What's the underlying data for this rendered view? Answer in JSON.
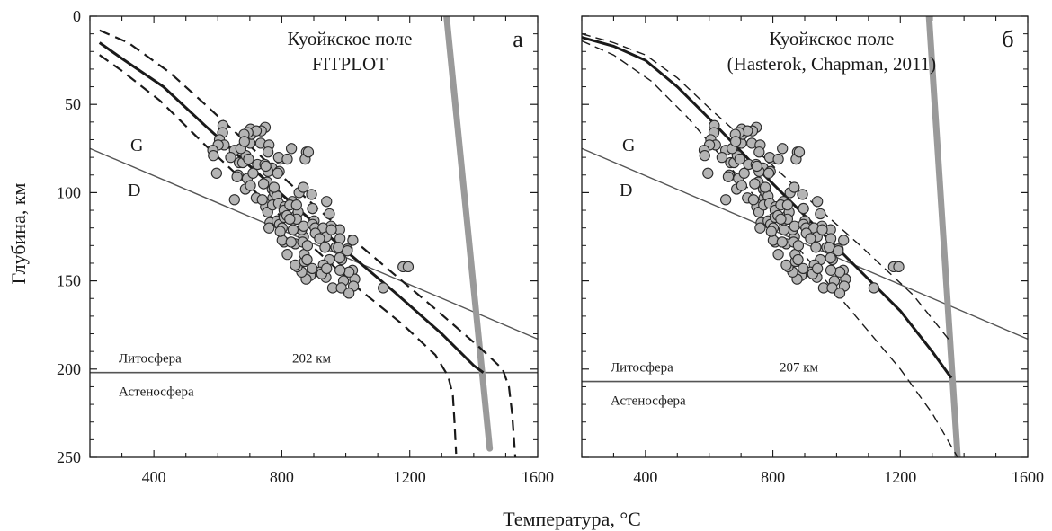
{
  "chart_data": {
    "type": "scatter",
    "xlabel": "Температура, °C",
    "ylabel": "Глубина, км",
    "xlim": [
      200,
      1600
    ],
    "ylim": [
      0,
      250
    ],
    "y_inverted": true,
    "xticks": [
      400,
      800,
      1200,
      1600
    ],
    "yticks": [
      0,
      50,
      100,
      150,
      200,
      250
    ],
    "colors": {
      "points": "#b4b4b4",
      "adiabat": "#9a9a9a",
      "geotherm": "#1a1a1a",
      "lines": "#555555"
    },
    "panels": [
      {
        "letter": "а",
        "title_line1": "Куойкское поле",
        "title_line2": "FITPLOT",
        "label_G": "G",
        "label_D": "D",
        "label_lithosphere": "Литосфера",
        "label_asthenosphere": "Астеносфера",
        "lab_depth_label": "202 км",
        "lab_depth": 202,
        "graphite_diamond_line": {
          "x": [
            200,
            1600
          ],
          "y": [
            75,
            183
          ]
        },
        "adiabat": {
          "x": [
            1315,
            1450
          ],
          "y": [
            0,
            245
          ]
        },
        "geotherm": {
          "x": [
            230,
            300,
            430,
            560,
            700,
            850,
            1000,
            1150,
            1300,
            1400,
            1430
          ],
          "y": [
            15,
            24,
            40,
            62,
            85,
            109,
            133,
            156,
            180,
            198,
            202
          ]
        },
        "geotherm_upper_bound": {
          "x": [
            230,
            320,
            450,
            560,
            680,
            820,
            980,
            1130,
            1280,
            1420,
            1490,
            1510,
            1520,
            1530
          ],
          "y": [
            8,
            15,
            32,
            50,
            70,
            94,
            120,
            143,
            166,
            188,
            200,
            210,
            225,
            250
          ]
        },
        "geotherm_lower_bound": {
          "x": [
            230,
            300,
            420,
            560,
            720,
            880,
            1030,
            1180,
            1280,
            1320,
            1335,
            1340,
            1345
          ],
          "y": [
            22,
            31,
            48,
            73,
            100,
            128,
            153,
            175,
            192,
            204,
            215,
            230,
            248
          ]
        },
        "xenoliths": {
          "x": [
            616,
            615,
            605,
            620,
            652,
            640,
            667,
            678,
            663,
            601,
            584,
            586,
            596,
            692,
            660,
            686,
            652,
            702,
            710,
            724,
            747,
            688,
            672,
            701,
            705,
            702,
            748,
            736,
            720,
            694,
            682,
            683,
            696,
            734,
            760,
            757,
            769,
            770,
            720,
            749,
            756,
            739,
            772,
            777,
            785,
            763,
            785,
            793,
            801,
            807,
            842,
            868,
            862,
            754,
            757,
            750,
            796,
            792,
            790,
            830,
            877,
            896,
            901,
            940,
            949,
            954,
            981,
            982,
            969,
            987,
            1022,
            1005,
            981,
            949,
            930,
            918,
            889,
            876,
            862,
            848,
            842,
            817,
            801,
            795,
            771,
            790,
            809,
            833,
            845,
            851,
            846,
            807,
            807,
            816,
            825,
            868,
            896,
            904,
            929,
            939,
            955,
            977,
            1005,
            1021,
            1028,
            1024,
            1010,
            993,
            982,
            938,
            925,
            895,
            871,
            870,
            865,
            880,
            935,
            940,
            959,
            986,
            1010,
            835,
            854,
            776,
            787,
            817,
            825,
            846,
            867,
            873,
            883,
            893,
            896,
            905,
            918,
            879,
            829,
            760,
            743,
            1179,
            1195,
            1117
          ],
          "y": [
            62,
            66,
            70,
            73,
            76,
            80,
            83,
            83,
            90,
            73,
            76,
            79,
            89,
            92,
            91,
            98,
            104,
            96,
            89,
            84,
            84,
            79,
            75,
            72,
            67,
            64,
            63,
            65,
            65,
            66,
            67,
            71,
            81,
            72,
            73,
            77,
            86,
            98,
            103,
            108,
            111,
            104,
            103,
            100,
            102,
            117,
            116,
            118,
            120,
            128,
            129,
            125,
            121,
            94,
            88,
            85,
            81,
            88,
            80,
            75,
            77,
            109,
            116,
            105,
            112,
            119,
            121,
            126,
            131,
            138,
            127,
            132,
            137,
            138,
            141,
            145,
            147,
            149,
            145,
            142,
            141,
            135,
            127,
            122,
            107,
            106,
            108,
            105,
            113,
            111,
            115,
            110,
            114,
            113,
            107,
            119,
            118,
            120,
            120,
            125,
            121,
            131,
            133,
            144,
            149,
            153,
            145,
            150,
            144,
            148,
            146,
            143,
            139,
            135,
            128,
            130,
            131,
            143,
            154,
            154,
            157,
            121,
            100,
            97,
            89,
            81,
            115,
            107,
            97,
            81,
            77,
            101,
            109,
            123,
            126,
            138,
            128,
            120,
            95,
            142,
            142,
            154
          ]
        }
      },
      {
        "letter": "б",
        "title_line1": "Куойкское поле",
        "title_line2": "(Hasterok, Chapman, 2011)",
        "label_G": "G",
        "label_D": "D",
        "label_lithosphere": "Литосфера",
        "label_asthenosphere": "Астеносфера",
        "lab_depth_label": "207 км",
        "lab_depth": 207,
        "graphite_diamond_line": {
          "x": [
            200,
            1600
          ],
          "y": [
            75,
            183
          ]
        },
        "adiabat": {
          "x": [
            1290,
            1380
          ],
          "y": [
            0,
            250
          ]
        },
        "geotherm": {
          "x": [
            200,
            300,
            400,
            500,
            600,
            750,
            900,
            1050,
            1200,
            1300,
            1360
          ],
          "y": [
            12,
            17,
            25,
            40,
            58,
            86,
            113,
            140,
            167,
            190,
            205
          ]
        },
        "geotherm_upper_bound": {
          "x": [
            200,
            300,
            400,
            500,
            600,
            760,
            920,
            1080,
            1240,
            1360
          ],
          "y": [
            10,
            15,
            22,
            35,
            52,
            78,
            105,
            131,
            158,
            185
          ]
        },
        "geotherm_lower_bound": {
          "x": [
            200,
            300,
            420,
            530,
            640,
            780,
            920,
            1060,
            1200,
            1300,
            1380
          ],
          "y": [
            14,
            22,
            37,
            57,
            80,
            110,
            140,
            170,
            200,
            225,
            250
          ]
        },
        "xenoliths": {
          "x": [
            616,
            615,
            605,
            620,
            652,
            640,
            667,
            678,
            663,
            601,
            584,
            586,
            596,
            692,
            660,
            686,
            652,
            702,
            710,
            724,
            747,
            688,
            672,
            701,
            705,
            702,
            748,
            736,
            720,
            694,
            682,
            683,
            696,
            734,
            760,
            757,
            769,
            770,
            720,
            749,
            756,
            739,
            772,
            777,
            785,
            763,
            785,
            793,
            801,
            807,
            842,
            868,
            862,
            754,
            757,
            750,
            796,
            792,
            790,
            830,
            877,
            896,
            901,
            940,
            949,
            954,
            981,
            982,
            969,
            987,
            1022,
            1005,
            981,
            949,
            930,
            918,
            889,
            876,
            862,
            848,
            842,
            817,
            801,
            795,
            771,
            790,
            809,
            833,
            845,
            851,
            846,
            807,
            807,
            816,
            825,
            868,
            896,
            904,
            929,
            939,
            955,
            977,
            1005,
            1021,
            1028,
            1024,
            1010,
            993,
            982,
            938,
            925,
            895,
            871,
            870,
            865,
            880,
            935,
            940,
            959,
            986,
            1010,
            835,
            854,
            776,
            787,
            817,
            825,
            846,
            867,
            873,
            883,
            893,
            896,
            905,
            918,
            879,
            829,
            760,
            743,
            1179,
            1195,
            1117
          ],
          "y": [
            62,
            66,
            70,
            73,
            76,
            80,
            83,
            83,
            90,
            73,
            76,
            79,
            89,
            92,
            91,
            98,
            104,
            96,
            89,
            84,
            84,
            79,
            75,
            72,
            67,
            64,
            63,
            65,
            65,
            66,
            67,
            71,
            81,
            72,
            73,
            77,
            86,
            98,
            103,
            108,
            111,
            104,
            103,
            100,
            102,
            117,
            116,
            118,
            120,
            128,
            129,
            125,
            121,
            94,
            88,
            85,
            81,
            88,
            80,
            75,
            77,
            109,
            116,
            105,
            112,
            119,
            121,
            126,
            131,
            138,
            127,
            132,
            137,
            138,
            141,
            145,
            147,
            149,
            145,
            142,
            141,
            135,
            127,
            122,
            107,
            106,
            108,
            105,
            113,
            111,
            115,
            110,
            114,
            113,
            107,
            119,
            118,
            120,
            120,
            125,
            121,
            131,
            133,
            144,
            149,
            153,
            145,
            150,
            144,
            148,
            146,
            143,
            139,
            135,
            128,
            130,
            131,
            143,
            154,
            154,
            157,
            121,
            100,
            97,
            89,
            81,
            115,
            107,
            97,
            81,
            77,
            101,
            109,
            123,
            126,
            138,
            128,
            120,
            95,
            142,
            142,
            154
          ]
        }
      }
    ]
  }
}
